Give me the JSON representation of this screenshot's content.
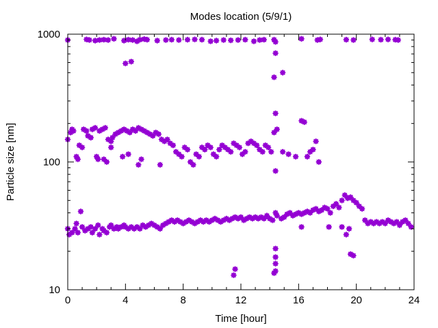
{
  "chart_data": {
    "type": "scatter",
    "title": "Modes location (5/9/1)",
    "xlabel": "Time [hour]",
    "ylabel": "Particle size [nm]",
    "xlim": [
      0,
      24
    ],
    "ylim": [
      10,
      1000
    ],
    "yscale": "log",
    "xticks": [
      0,
      4,
      8,
      12,
      16,
      20,
      24
    ],
    "yticks": [
      10,
      100,
      1000
    ],
    "grid": false,
    "marker_color": "#9400D3",
    "marker": "star",
    "series": [
      {
        "points": [
          [
            0.0,
            900
          ],
          [
            1.3,
            910
          ],
          [
            1.5,
            900
          ],
          [
            1.9,
            890
          ],
          [
            2.2,
            900
          ],
          [
            2.5,
            905
          ],
          [
            2.8,
            900
          ],
          [
            3.2,
            920
          ],
          [
            3.9,
            890
          ],
          [
            4.2,
            905
          ],
          [
            4.5,
            900
          ],
          [
            4.8,
            880
          ],
          [
            5.0,
            905
          ],
          [
            5.3,
            915
          ],
          [
            5.5,
            905
          ],
          [
            6.2,
            890
          ],
          [
            6.8,
            900
          ],
          [
            7.2,
            905
          ],
          [
            7.7,
            900
          ],
          [
            8.3,
            905
          ],
          [
            8.8,
            910
          ],
          [
            9.3,
            905
          ],
          [
            9.9,
            880
          ],
          [
            10.3,
            890
          ],
          [
            10.8,
            900
          ],
          [
            11.3,
            895
          ],
          [
            11.8,
            900
          ],
          [
            12.3,
            905
          ],
          [
            12.9,
            880
          ],
          [
            13.3,
            900
          ],
          [
            13.6,
            905
          ],
          [
            14.3,
            905
          ],
          [
            14.4,
            870
          ],
          [
            16.2,
            920
          ],
          [
            17.3,
            900
          ],
          [
            17.5,
            910
          ],
          [
            19.3,
            905
          ],
          [
            19.8,
            900
          ],
          [
            21.1,
            910
          ],
          [
            21.7,
            905
          ],
          [
            22.2,
            910
          ],
          [
            22.7,
            905
          ],
          [
            22.9,
            900
          ],
          [
            4.0,
            590
          ],
          [
            4.4,
            610
          ],
          [
            14.4,
            710
          ],
          [
            14.9,
            500
          ],
          [
            14.3,
            460
          ]
        ]
      },
      {
        "points": [
          [
            0.0,
            150
          ],
          [
            0.2,
            170
          ],
          [
            0.3,
            180
          ],
          [
            0.4,
            175
          ],
          [
            0.6,
            110
          ],
          [
            0.7,
            105
          ],
          [
            0.8,
            135
          ],
          [
            1.0,
            130
          ],
          [
            1.1,
            180
          ],
          [
            1.3,
            175
          ],
          [
            1.4,
            160
          ],
          [
            1.6,
            155
          ],
          [
            1.7,
            180
          ],
          [
            1.9,
            185
          ],
          [
            2.0,
            110
          ],
          [
            2.1,
            105
          ],
          [
            2.2,
            175
          ],
          [
            2.4,
            180
          ],
          [
            2.6,
            185
          ],
          [
            2.8,
            150
          ],
          [
            3.0,
            145
          ],
          [
            3.1,
            155
          ],
          [
            3.3,
            165
          ],
          [
            3.5,
            170
          ],
          [
            3.7,
            175
          ],
          [
            3.9,
            180
          ],
          [
            4.1,
            175
          ],
          [
            4.3,
            170
          ],
          [
            4.5,
            180
          ],
          [
            4.7,
            175
          ],
          [
            4.9,
            185
          ],
          [
            5.1,
            180
          ],
          [
            5.3,
            175
          ],
          [
            5.5,
            170
          ],
          [
            5.7,
            165
          ],
          [
            5.9,
            160
          ],
          [
            6.1,
            170
          ],
          [
            6.3,
            165
          ],
          [
            6.5,
            150
          ],
          [
            6.7,
            145
          ],
          [
            6.9,
            150
          ],
          [
            7.1,
            140
          ],
          [
            7.3,
            135
          ],
          [
            7.5,
            120
          ],
          [
            7.7,
            115
          ],
          [
            7.9,
            110
          ],
          [
            8.1,
            130
          ],
          [
            8.3,
            125
          ],
          [
            8.5,
            100
          ],
          [
            8.7,
            95
          ],
          [
            8.9,
            115
          ],
          [
            9.1,
            110
          ],
          [
            9.3,
            130
          ],
          [
            9.5,
            125
          ],
          [
            9.7,
            135
          ],
          [
            9.9,
            130
          ],
          [
            10.1,
            115
          ],
          [
            10.3,
            110
          ],
          [
            10.5,
            125
          ],
          [
            10.7,
            135
          ],
          [
            10.9,
            130
          ],
          [
            11.1,
            125
          ],
          [
            11.3,
            120
          ],
          [
            11.5,
            140
          ],
          [
            11.7,
            135
          ],
          [
            11.9,
            130
          ],
          [
            12.1,
            115
          ],
          [
            12.3,
            120
          ],
          [
            12.5,
            140
          ],
          [
            12.7,
            145
          ],
          [
            12.9,
            140
          ],
          [
            13.1,
            135
          ],
          [
            13.3,
            125
          ],
          [
            13.5,
            120
          ],
          [
            13.7,
            135
          ],
          [
            13.9,
            130
          ],
          [
            14.1,
            120
          ],
          [
            14.3,
            170
          ],
          [
            14.4,
            240
          ],
          [
            14.4,
            85
          ],
          [
            14.5,
            180
          ],
          [
            14.9,
            120
          ],
          [
            15.3,
            115
          ],
          [
            15.8,
            110
          ],
          [
            16.2,
            210
          ],
          [
            16.4,
            205
          ],
          [
            16.6,
            110
          ],
          [
            16.8,
            120
          ],
          [
            17.0,
            125
          ],
          [
            17.2,
            145
          ],
          [
            17.4,
            100
          ],
          [
            3.8,
            110
          ],
          [
            4.2,
            115
          ],
          [
            4.9,
            95
          ],
          [
            5.1,
            105
          ],
          [
            2.5,
            105
          ],
          [
            2.7,
            100
          ],
          [
            6.4,
            95
          ],
          [
            3.0,
            130
          ]
        ]
      },
      {
        "points": [
          [
            0.0,
            30
          ],
          [
            0.1,
            27
          ],
          [
            0.3,
            28
          ],
          [
            0.5,
            30
          ],
          [
            0.6,
            33
          ],
          [
            0.7,
            28
          ],
          [
            0.9,
            41
          ],
          [
            1.0,
            31
          ],
          [
            1.2,
            29
          ],
          [
            1.4,
            30
          ],
          [
            1.6,
            31
          ],
          [
            1.7,
            28
          ],
          [
            1.9,
            30
          ],
          [
            2.1,
            32
          ],
          [
            2.2,
            27
          ],
          [
            2.4,
            30
          ],
          [
            2.5,
            29
          ],
          [
            2.7,
            28
          ],
          [
            2.9,
            31
          ],
          [
            3.0,
            32
          ],
          [
            3.2,
            30
          ],
          [
            3.4,
            31
          ],
          [
            3.5,
            30
          ],
          [
            3.7,
            31
          ],
          [
            3.9,
            32
          ],
          [
            4.0,
            31
          ],
          [
            4.2,
            30
          ],
          [
            4.4,
            31
          ],
          [
            4.6,
            30
          ],
          [
            4.8,
            31
          ],
          [
            5.0,
            30
          ],
          [
            5.2,
            32
          ],
          [
            5.4,
            31
          ],
          [
            5.6,
            32
          ],
          [
            5.8,
            33
          ],
          [
            6.0,
            32
          ],
          [
            6.2,
            31
          ],
          [
            6.4,
            30
          ],
          [
            6.6,
            32
          ],
          [
            6.8,
            33
          ],
          [
            7.0,
            34
          ],
          [
            7.2,
            35
          ],
          [
            7.4,
            34
          ],
          [
            7.6,
            35
          ],
          [
            7.8,
            34
          ],
          [
            8.0,
            33
          ],
          [
            8.2,
            34
          ],
          [
            8.4,
            35
          ],
          [
            8.6,
            34
          ],
          [
            8.8,
            33
          ],
          [
            9.0,
            34
          ],
          [
            9.2,
            35
          ],
          [
            9.4,
            34
          ],
          [
            9.6,
            35
          ],
          [
            9.8,
            34
          ],
          [
            10.0,
            35
          ],
          [
            10.2,
            36
          ],
          [
            10.4,
            35
          ],
          [
            10.6,
            34
          ],
          [
            10.8,
            35
          ],
          [
            11.0,
            36
          ],
          [
            11.2,
            35
          ],
          [
            11.4,
            36
          ],
          [
            11.6,
            37
          ],
          [
            11.8,
            36
          ],
          [
            12.0,
            37
          ],
          [
            12.2,
            35
          ],
          [
            12.4,
            36
          ],
          [
            12.6,
            37
          ],
          [
            12.8,
            36
          ],
          [
            13.0,
            37
          ],
          [
            13.2,
            36
          ],
          [
            13.4,
            37
          ],
          [
            13.6,
            36
          ],
          [
            13.8,
            38
          ],
          [
            14.0,
            36
          ],
          [
            14.2,
            35
          ],
          [
            14.4,
            40
          ],
          [
            14.5,
            38
          ],
          [
            14.8,
            36
          ],
          [
            15.0,
            37
          ],
          [
            15.2,
            39
          ],
          [
            15.4,
            40
          ],
          [
            15.6,
            38
          ],
          [
            15.8,
            39
          ],
          [
            16.0,
            40
          ],
          [
            16.2,
            39
          ],
          [
            16.4,
            40
          ],
          [
            16.6,
            41
          ],
          [
            16.8,
            40
          ],
          [
            17.0,
            42
          ],
          [
            17.2,
            43
          ],
          [
            17.4,
            41
          ],
          [
            17.6,
            42
          ],
          [
            17.8,
            44
          ],
          [
            18.0,
            43
          ],
          [
            18.2,
            40
          ],
          [
            18.4,
            45
          ],
          [
            18.6,
            47
          ],
          [
            18.8,
            44
          ],
          [
            19.0,
            50
          ],
          [
            19.2,
            55
          ],
          [
            19.4,
            52
          ],
          [
            19.6,
            53
          ],
          [
            19.8,
            50
          ],
          [
            20.0,
            48
          ],
          [
            20.2,
            45
          ],
          [
            20.4,
            43
          ],
          [
            20.6,
            35
          ],
          [
            20.8,
            33
          ],
          [
            21.0,
            34
          ],
          [
            21.2,
            33
          ],
          [
            21.4,
            34
          ],
          [
            21.6,
            33
          ],
          [
            21.8,
            34
          ],
          [
            22.0,
            33
          ],
          [
            22.2,
            35
          ],
          [
            22.4,
            34
          ],
          [
            22.6,
            33
          ],
          [
            22.8,
            34
          ],
          [
            23.0,
            32
          ],
          [
            23.2,
            34
          ],
          [
            23.4,
            35
          ],
          [
            23.6,
            33
          ],
          [
            23.8,
            31
          ],
          [
            14.4,
            21
          ],
          [
            14.4,
            18
          ],
          [
            14.4,
            16
          ],
          [
            14.4,
            14
          ],
          [
            11.5,
            13
          ],
          [
            11.6,
            14.5
          ],
          [
            19.6,
            19
          ],
          [
            19.8,
            18.5
          ],
          [
            16.2,
            31
          ],
          [
            18.1,
            31
          ],
          [
            19.0,
            31
          ],
          [
            19.3,
            27
          ],
          [
            19.5,
            30
          ],
          [
            14.3,
            13.5
          ]
        ]
      }
    ]
  }
}
